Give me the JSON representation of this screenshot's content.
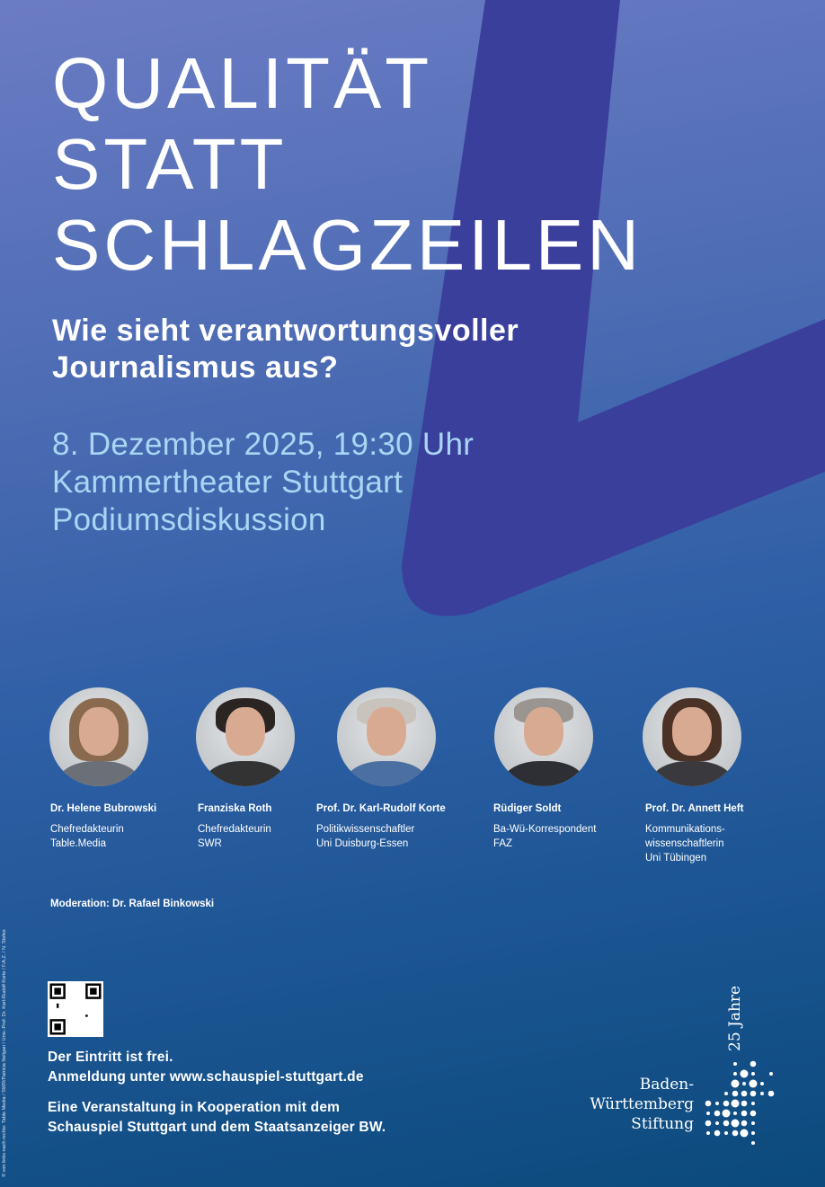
{
  "title": {
    "lines": [
      "QUALITÄT",
      "STATT",
      "SCHLAGZEILEN"
    ]
  },
  "subtitle": {
    "lines": [
      "Wie sieht verantwortungsvoller",
      "Journalismus aus?"
    ]
  },
  "event": {
    "date": "8. Dezember 2025, 19:30 Uhr",
    "venue": "Kammertheater Stuttgart",
    "format": "Podiumsdiskussion"
  },
  "speakers": [
    {
      "name": "Dr. Helene Bubrowski",
      "role": [
        "Chefredakteurin",
        "Table.Media"
      ]
    },
    {
      "name": "Franziska Roth",
      "role": [
        "Chefredakteurin",
        "SWR"
      ]
    },
    {
      "name": "Prof. Dr. Karl-Rudolf Korte",
      "role": [
        "Politikwissenschaftler",
        "Uni Duisburg-Essen"
      ]
    },
    {
      "name": "Rüdiger Soldt",
      "role": [
        "Ba-Wü-Korrespondent",
        "FAZ"
      ]
    },
    {
      "name": "Prof. Dr. Annett Heft",
      "role": [
        "Kommunikations-",
        "wissenschaftlerin",
        "Uni Tübingen"
      ]
    }
  ],
  "moderation": "Moderation: Dr. Rafael Binkowski",
  "footer": {
    "entry": "Der Eintritt ist frei.",
    "registration": "Anmeldung unter www.schauspiel-stuttgart.de",
    "coop1": "Eine Veranstaltung in Kooperation mit dem",
    "coop2": "Schauspiel Stuttgart und dem Staatsanzeiger BW."
  },
  "credit": "© von links nach rechts: Table Media / SWR/Patricia Neligan / Univ.-Prof. Dr. Karl-Rudolf Korte / F.A.Z. / N. Stefes",
  "logo": {
    "line1": "Baden-",
    "line2": "Württemberg",
    "line3": "Stiftung",
    "anniversary": "25 Jahre"
  },
  "colors": {
    "slash": "#3b3f9c",
    "accent_text": "#a8d6f4"
  }
}
